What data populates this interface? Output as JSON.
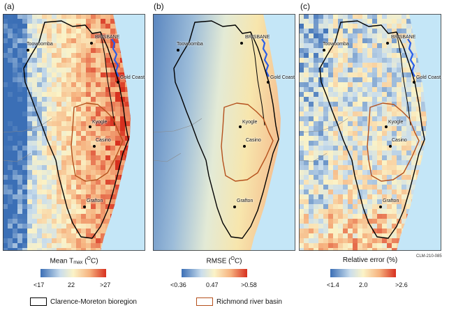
{
  "panels": [
    {
      "label": "(a)",
      "colorbar": {
        "title_main": "Mean T",
        "title_sub": "max",
        "title_tail": " (",
        "title_sup": "O",
        "title_end": "C)",
        "ticks": [
          "<17",
          "22",
          ">27"
        ],
        "colors": [
          "#3b6fb6",
          "#c9ddec",
          "#fbf3c7",
          "#f6b27f",
          "#d7301f"
        ]
      }
    },
    {
      "label": "(b)",
      "colorbar": {
        "title_main": "RMSE (",
        "title_sup": "O",
        "title_end": "C)",
        "ticks": [
          "<0.36",
          "0.47",
          ">0.58"
        ],
        "colors": [
          "#3b6fb6",
          "#c9ddec",
          "#fbf3c7",
          "#f6b27f",
          "#d7301f"
        ]
      }
    },
    {
      "label": "(c)",
      "colorbar": {
        "title_main": "Relative error (%)",
        "ticks": [
          "<1.4",
          "2.0",
          ">2.6"
        ],
        "colors": [
          "#3b6fb6",
          "#c9ddec",
          "#fbf3c7",
          "#f6b27f",
          "#d7301f"
        ]
      }
    }
  ],
  "cities": {
    "brisbane": "BRISBANE",
    "toowoomba": "Toowoomba",
    "gold_coast": "Gold Coast",
    "kyogle": "Kyogle",
    "casino": "Casino",
    "grafton": "Grafton"
  },
  "figure_code": "CLM-210-085",
  "legend": {
    "bioregion": "Clarence-Moreton bioregion",
    "bioregion_color": "#000000",
    "basin": "Richmond river basin",
    "basin_color": "#b5501c"
  },
  "colors": {
    "ocean": "#c4e6f7",
    "bay": "#2a5de8"
  }
}
